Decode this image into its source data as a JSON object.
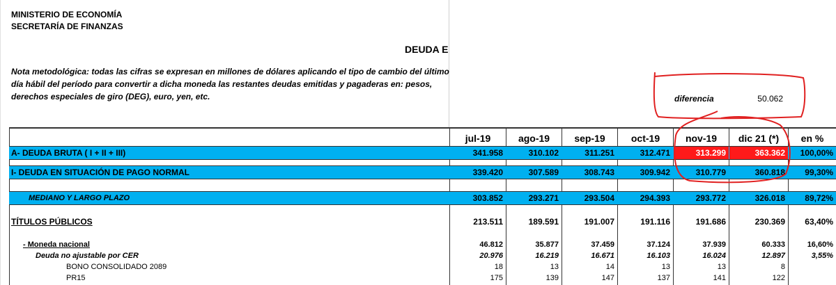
{
  "header": {
    "ministry": "MINISTERIO DE ECONOMÍA",
    "secretariat": "SECRETARÍA DE FINANZAS",
    "title": "DEUDA E"
  },
  "note": "Nota metodológica: todas las cifras se expresan en millones de dólares aplicando el tipo de cambio del último día hábil del período para convertir a dicha moneda las restantes deudas emitidas y pagaderas en: pesos, derechos especiales de giro (DEG), euro, yen, etc.",
  "diferencia": {
    "label": "diferencia",
    "value": "50.062"
  },
  "table": {
    "columns": [
      "jul-19",
      "ago-19",
      "sep-19",
      "oct-19",
      "nov-19",
      "dic 21 (*)",
      "en %"
    ],
    "rows": [
      {
        "label": "A- DEUDA BRUTA ( I + II  + III)",
        "values": [
          "341.958",
          "310.102",
          "311.251",
          "312.471",
          "313.299",
          "363.362",
          "100,00%"
        ]
      },
      {
        "label": "I- DEUDA EN SITUACIÓN DE PAGO NORMAL",
        "values": [
          "339.420",
          "307.589",
          "308.743",
          "309.942",
          "310.779",
          "360.818",
          "99,30%"
        ]
      },
      {
        "label": "MEDIANO Y LARGO PLAZO",
        "values": [
          "303.852",
          "293.271",
          "293.504",
          "294.393",
          "293.772",
          "326.018",
          "89,72%"
        ]
      },
      {
        "label": "TÍTULOS PÚBLICOS",
        "values": [
          "213.511",
          "189.591",
          "191.007",
          "191.116",
          "191.686",
          "230.369",
          "63,40%"
        ]
      },
      {
        "label": "- Moneda nacional",
        "values": [
          "46.812",
          "35.877",
          "37.459",
          "37.124",
          "37.939",
          "60.333",
          "16,60%"
        ]
      },
      {
        "label": "Deuda no ajustable por CER",
        "values": [
          "20.976",
          "16.219",
          "16.671",
          "16.103",
          "16.024",
          "12.897",
          "3,55%"
        ]
      },
      {
        "label": "BONO CONSOLIDADO 2089",
        "values": [
          "18",
          "13",
          "14",
          "13",
          "13",
          "8",
          ""
        ]
      },
      {
        "label": "PR15",
        "values": [
          "175",
          "139",
          "147",
          "137",
          "141",
          "122",
          ""
        ]
      }
    ]
  },
  "colors": {
    "band": "#00b0f0",
    "highlight": "#ff1a1a",
    "annotation": "#e02020"
  }
}
